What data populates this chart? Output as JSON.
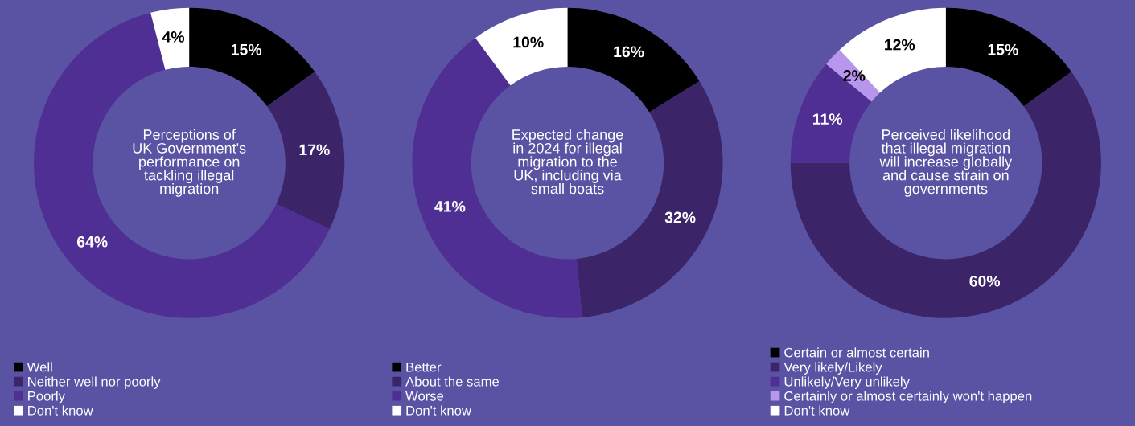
{
  "chart_data": [
    {
      "type": "donut",
      "title": "Perceptions of\nUK Government's\nperformance on\ntackling illegal\nmigration",
      "categories": [
        "Well",
        "Neither well nor poorly",
        "Poorly",
        "Don't know"
      ],
      "values": [
        15,
        17,
        64,
        4
      ],
      "colors": [
        "#000000",
        "#3b2468",
        "#4f2f93",
        "#ffffff"
      ],
      "value_labels": [
        "15%",
        "17%",
        "64%",
        "4%"
      ],
      "legend": "bottom left"
    },
    {
      "type": "donut",
      "title": "Expected change\nin 2024 for illegal\nmigration to the\nUK, including via\nsmall boats",
      "categories": [
        "Better",
        "About the same",
        "Worse",
        "Don't know"
      ],
      "values": [
        16,
        32,
        41,
        10
      ],
      "colors": [
        "#000000",
        "#3b2468",
        "#4f2f93",
        "#ffffff"
      ],
      "value_labels": [
        "16%",
        "32%",
        "41%",
        "10%"
      ],
      "legend": "bottom left"
    },
    {
      "type": "donut",
      "title": "Perceived likelihood\nthat illegal migration\nwill increase globally\nand cause strain on\ngovernments",
      "categories": [
        "Certain or almost certain",
        "Very likely/Likely",
        "Unlikely/Very unlikely",
        "Certainly or almost certainly won't happen",
        "Don't know"
      ],
      "values": [
        15,
        60,
        11,
        2,
        12
      ],
      "colors": [
        "#000000",
        "#3b2468",
        "#4f2f93",
        "#b896ee",
        "#ffffff"
      ],
      "value_labels": [
        "15%",
        "60%",
        "11%",
        "2%",
        "12%"
      ],
      "legend": "bottom left"
    }
  ]
}
